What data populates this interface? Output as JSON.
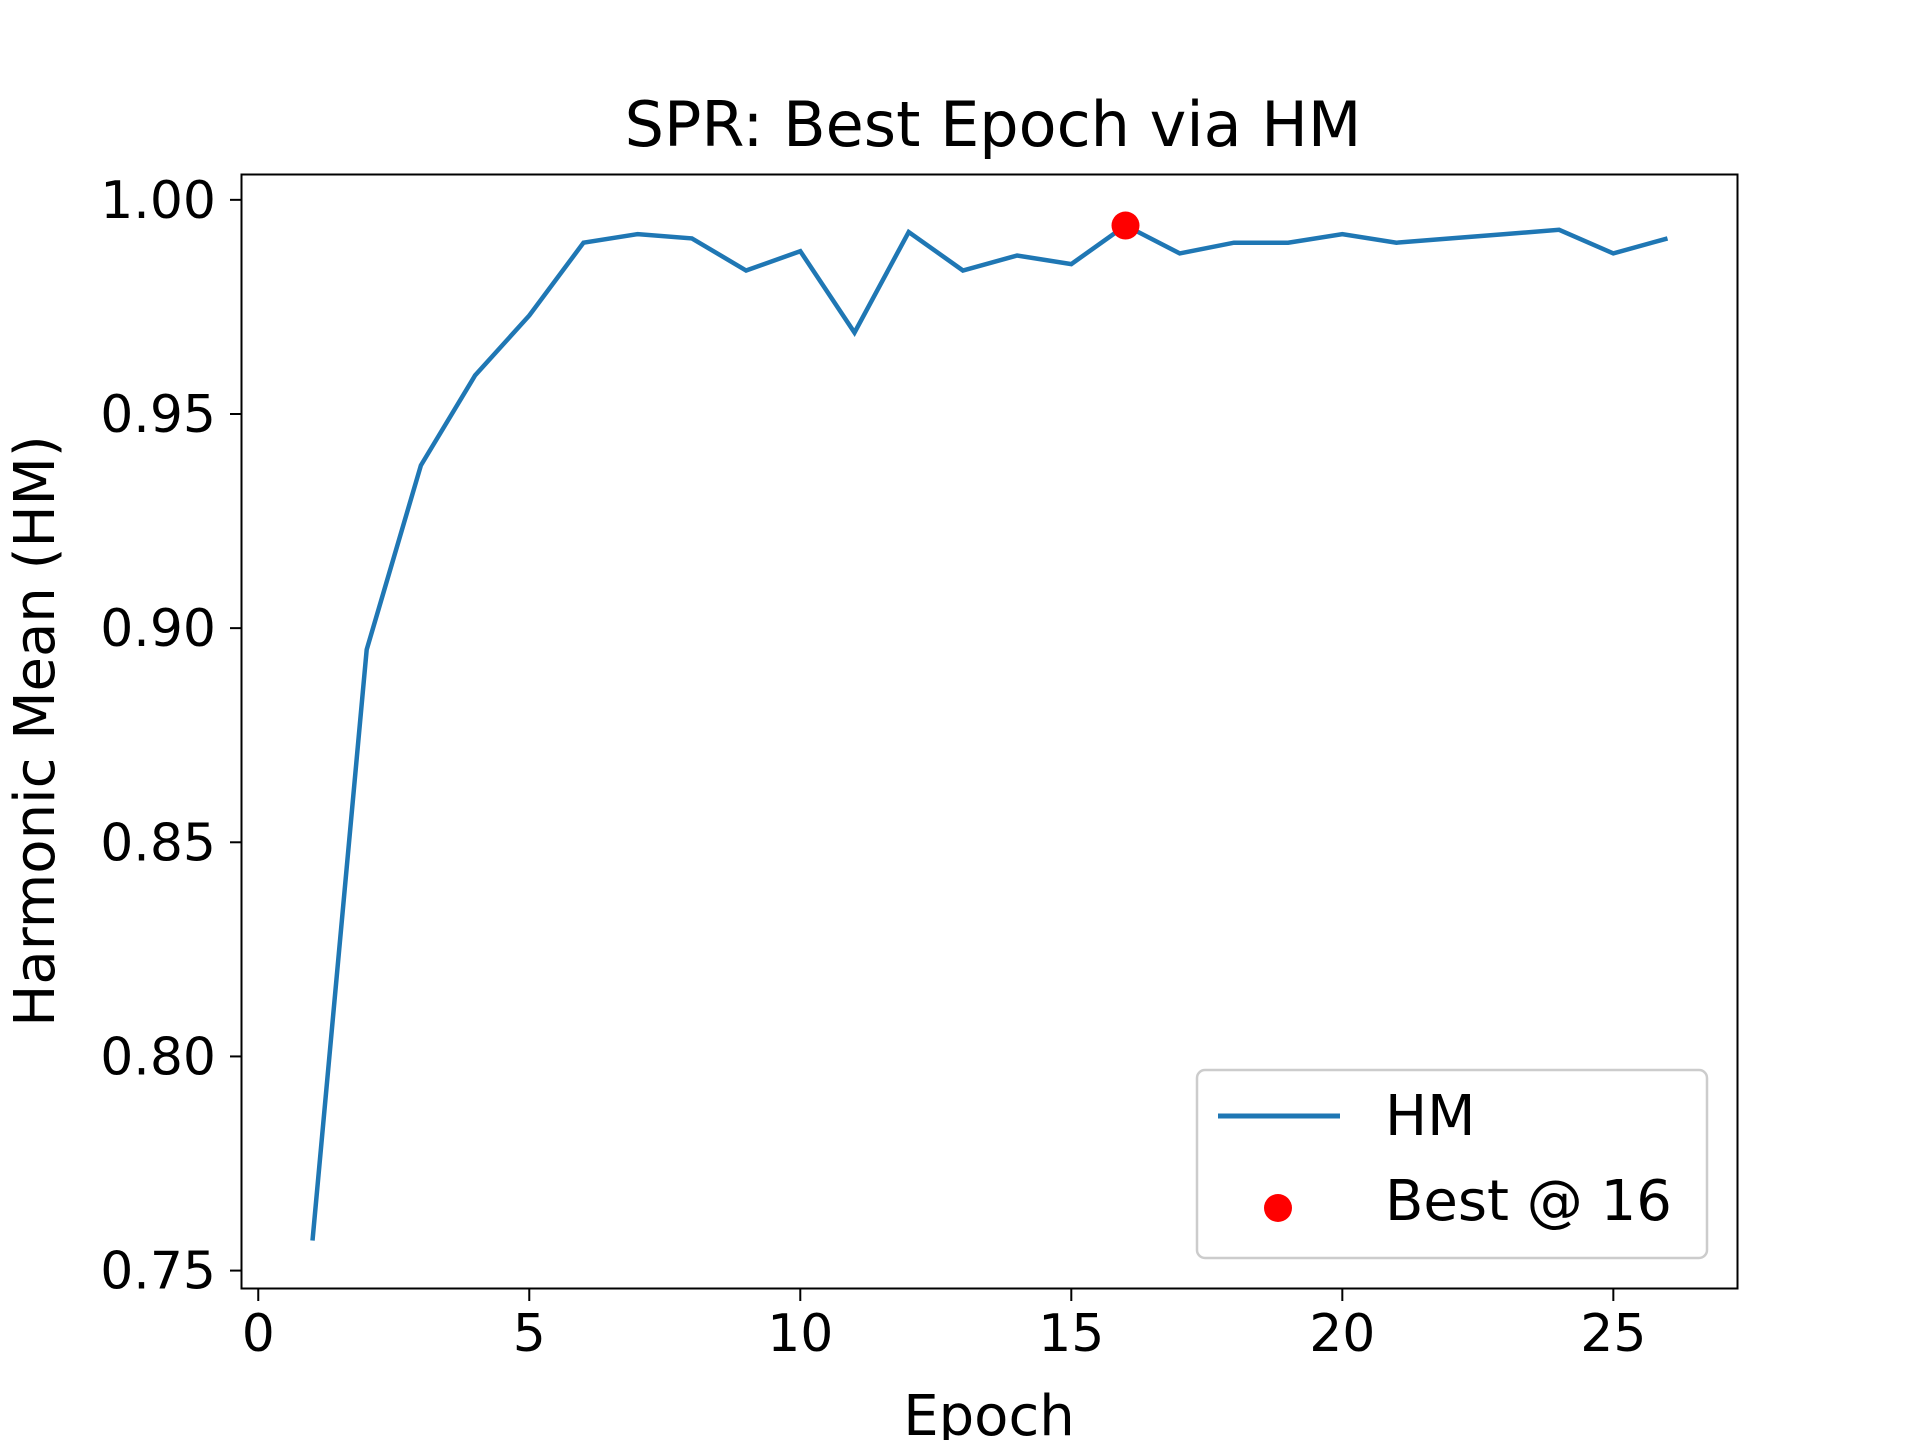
{
  "chart_data": {
    "type": "line",
    "title": "SPR: Best Epoch via HM",
    "xlabel": "Epoch",
    "ylabel": "Harmonic Mean (HM)",
    "xlim": [
      -0.3,
      27.3
    ],
    "ylim": [
      0.7457,
      1.0058
    ],
    "xticks": [
      0,
      5,
      10,
      15,
      20,
      25
    ],
    "xtick_labels": [
      "0",
      "5",
      "10",
      "15",
      "20",
      "25"
    ],
    "yticks": [
      0.75,
      0.8,
      0.85,
      0.9,
      0.95,
      1.0
    ],
    "ytick_labels": [
      "0.75",
      "0.80",
      "0.85",
      "0.90",
      "0.95",
      "1.00"
    ],
    "grid": false,
    "legend_position": "lower-right",
    "series": [
      {
        "name": "HM",
        "color": "#1f77b4",
        "x": [
          1,
          2,
          3,
          4,
          5,
          6,
          7,
          8,
          9,
          10,
          11,
          12,
          13,
          14,
          15,
          16,
          17,
          18,
          19,
          20,
          21,
          22,
          23,
          24,
          25,
          26
        ],
        "y": [
          0.757,
          0.895,
          0.938,
          0.959,
          0.973,
          0.99,
          0.992,
          0.991,
          0.9835,
          0.988,
          0.969,
          0.9925,
          0.9835,
          0.987,
          0.985,
          0.994,
          0.9875,
          0.99,
          0.99,
          0.992,
          0.99,
          0.991,
          0.992,
          0.993,
          0.9875,
          0.991
        ]
      }
    ],
    "best_point": {
      "name": "Best @ 16",
      "x": 16,
      "y": 0.994,
      "color": "#ff0000"
    }
  }
}
